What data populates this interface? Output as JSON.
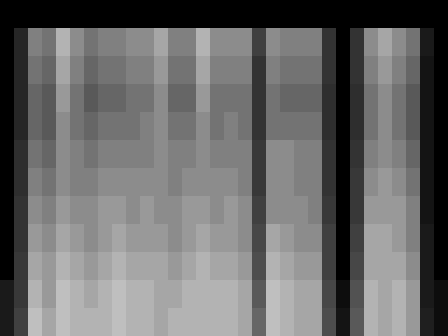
{
  "chart_data": {
    "type": "heatmap",
    "tick_labels": false,
    "xlim": [
      0,
      32
    ],
    "ylim": [
      0,
      12
    ],
    "zlim": [
      0,
      100
    ],
    "cells": [
      [
        0,
        0,
        0,
        0,
        0,
        0,
        0,
        0,
        0,
        0,
        0,
        0,
        0,
        0,
        0,
        0,
        0,
        0,
        0,
        0,
        0,
        0,
        0,
        0,
        0,
        0,
        0,
        0,
        0,
        0,
        0,
        0
      ],
      [
        0,
        15,
        50,
        45,
        70,
        55,
        45,
        50,
        50,
        55,
        55,
        65,
        50,
        50,
        70,
        55,
        55,
        55,
        25,
        55,
        50,
        50,
        50,
        20,
        0,
        20,
        55,
        65,
        55,
        45,
        10,
        0
      ],
      [
        0,
        15,
        45,
        40,
        65,
        50,
        40,
        45,
        45,
        50,
        50,
        60,
        45,
        45,
        65,
        50,
        50,
        50,
        20,
        50,
        45,
        45,
        45,
        20,
        0,
        20,
        50,
        60,
        50,
        40,
        8,
        0
      ],
      [
        0,
        15,
        40,
        35,
        60,
        45,
        35,
        40,
        40,
        45,
        45,
        55,
        40,
        40,
        60,
        45,
        45,
        45,
        20,
        45,
        40,
        40,
        40,
        18,
        0,
        18,
        45,
        55,
        45,
        35,
        8,
        0
      ],
      [
        0,
        15,
        40,
        35,
        55,
        45,
        40,
        45,
        45,
        45,
        50,
        55,
        45,
        45,
        55,
        45,
        50,
        45,
        20,
        45,
        45,
        45,
        45,
        18,
        0,
        18,
        45,
        55,
        45,
        35,
        8,
        0
      ],
      [
        0,
        18,
        45,
        40,
        55,
        50,
        45,
        50,
        50,
        50,
        50,
        55,
        50,
        50,
        55,
        50,
        50,
        50,
        22,
        55,
        55,
        50,
        50,
        20,
        0,
        20,
        50,
        55,
        50,
        40,
        8,
        0
      ],
      [
        0,
        18,
        50,
        45,
        55,
        50,
        50,
        55,
        55,
        55,
        55,
        55,
        50,
        55,
        55,
        55,
        55,
        50,
        22,
        55,
        55,
        50,
        50,
        20,
        0,
        22,
        55,
        60,
        55,
        45,
        8,
        0
      ],
      [
        0,
        20,
        55,
        50,
        60,
        55,
        55,
        60,
        60,
        55,
        60,
        55,
        55,
        60,
        60,
        55,
        60,
        55,
        25,
        55,
        55,
        55,
        50,
        22,
        0,
        22,
        60,
        60,
        60,
        50,
        8,
        0
      ],
      [
        0,
        20,
        60,
        55,
        65,
        60,
        55,
        60,
        65,
        60,
        60,
        60,
        55,
        60,
        65,
        60,
        60,
        55,
        28,
        65,
        60,
        55,
        55,
        25,
        0,
        25,
        65,
        65,
        60,
        50,
        10,
        0
      ],
      [
        0,
        22,
        65,
        60,
        70,
        65,
        60,
        65,
        70,
        65,
        65,
        65,
        60,
        65,
        70,
        65,
        65,
        60,
        30,
        70,
        65,
        60,
        60,
        25,
        0,
        28,
        65,
        65,
        65,
        55,
        10,
        0
      ],
      [
        10,
        22,
        70,
        60,
        75,
        70,
        65,
        70,
        75,
        70,
        70,
        65,
        65,
        70,
        70,
        70,
        70,
        65,
        35,
        75,
        70,
        65,
        65,
        28,
        5,
        32,
        70,
        65,
        70,
        60,
        10,
        5
      ],
      [
        10,
        25,
        75,
        65,
        75,
        70,
        70,
        70,
        75,
        70,
        70,
        65,
        70,
        70,
        70,
        70,
        70,
        65,
        40,
        75,
        70,
        65,
        65,
        30,
        8,
        35,
        70,
        65,
        70,
        60,
        12,
        5
      ]
    ]
  }
}
